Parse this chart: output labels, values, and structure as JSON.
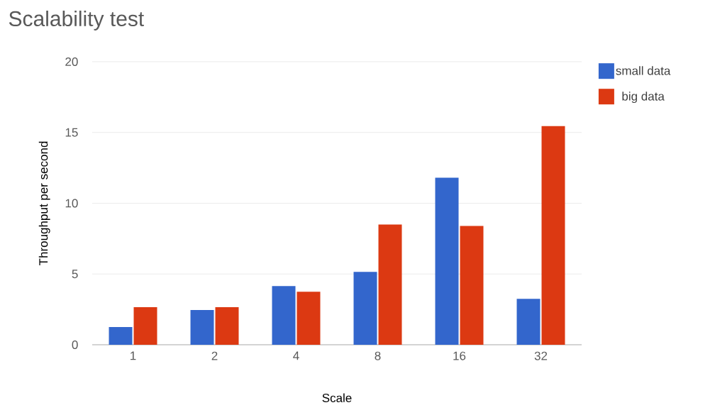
{
  "chart_data": {
    "type": "bar",
    "title": "Scalability test",
    "xlabel": "Scale",
    "ylabel": "Throughput per second",
    "categories": [
      "1",
      "2",
      "4",
      "8",
      "16",
      "32"
    ],
    "series": [
      {
        "name": "small data",
        "color": "#3366cc",
        "values": [
          1.25,
          2.45,
          4.15,
          5.15,
          11.8,
          3.25
        ]
      },
      {
        "name": "big data",
        "color": "#dc3912",
        "values": [
          2.65,
          2.65,
          3.75,
          8.5,
          8.4,
          15.45
        ]
      }
    ],
    "ylim": [
      0,
      20
    ],
    "yticks": [
      0,
      5,
      10,
      15,
      20
    ],
    "grid": "y",
    "legend": "top right"
  }
}
